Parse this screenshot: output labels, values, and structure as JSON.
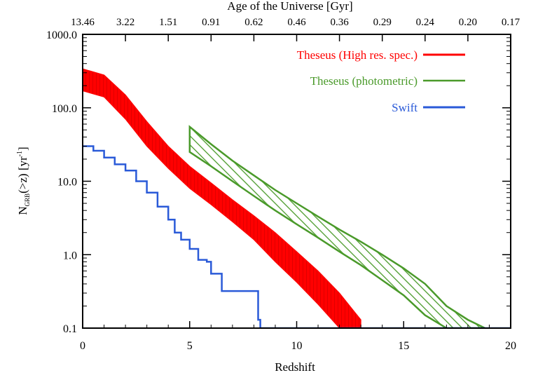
{
  "chart_data": {
    "type": "line",
    "title": "",
    "xlabel": "Redshift",
    "ylabel_main": "N",
    "ylabel_sub": "GRB",
    "ylabel_rest": "(>z)   [yr",
    "ylabel_sup": "-1",
    "ylabel_close": "]",
    "top_axis_label": "Age of the Universe [Gyr]",
    "xlim": [
      0,
      20
    ],
    "ylim": [
      0.1,
      1000
    ],
    "yscale": "log",
    "grid": false,
    "legend_position": "top-right",
    "x_ticks": [
      0,
      5,
      10,
      15,
      20
    ],
    "x_tick_labels": [
      "0",
      "5",
      "10",
      "15",
      "20"
    ],
    "y_ticks": [
      0.1,
      1,
      10,
      100,
      1000
    ],
    "y_tick_labels": [
      "0.1",
      "1.0",
      "10.0",
      "100.0",
      "1000.0"
    ],
    "top_tick_labels": [
      "13.46",
      "3.22",
      "1.51",
      "0.91",
      "0.62",
      "0.46",
      "0.36",
      "0.29",
      "0.24",
      "0.20",
      "0.17"
    ],
    "top_tick_redshifts": [
      0,
      2,
      4,
      6,
      8,
      10,
      12,
      14,
      16,
      18,
      20
    ],
    "series": [
      {
        "name": "Theseus (High res. spec.)",
        "color": "#ff0000",
        "style": "filled-band",
        "x": [
          0,
          1,
          2,
          3,
          4,
          5,
          6,
          7,
          8,
          9,
          10,
          11,
          12,
          13
        ],
        "upper": [
          340,
          280,
          150,
          65,
          30,
          16,
          9.5,
          5.6,
          3.4,
          2.0,
          1.1,
          0.6,
          0.3,
          0.13
        ],
        "lower": [
          170,
          140,
          70,
          30,
          15,
          8,
          4.8,
          2.8,
          1.6,
          0.8,
          0.42,
          0.21,
          0.1,
          0.1
        ]
      },
      {
        "name": "Theseus (photometric)",
        "color": "#4a9a2a",
        "style": "hatched-band",
        "x": [
          5,
          6,
          7,
          8,
          9,
          10,
          11,
          12,
          13,
          14,
          15,
          16,
          17,
          18,
          18.8
        ],
        "upper": [
          55,
          32,
          19,
          12,
          7.6,
          5.0,
          3.3,
          2.2,
          1.5,
          1.0,
          0.65,
          0.4,
          0.2,
          0.13,
          0.1
        ],
        "lower": [
          25,
          16,
          10,
          6.3,
          4.0,
          2.6,
          1.7,
          1.1,
          0.72,
          0.45,
          0.28,
          0.15,
          0.1,
          0.1,
          0.1
        ]
      },
      {
        "name": "Swift",
        "color": "#2a5ad8",
        "style": "step",
        "x": [
          0,
          0.5,
          1.0,
          1.5,
          2.0,
          2.5,
          3.0,
          3.5,
          4.0,
          4.3,
          4.6,
          5.0,
          5.4,
          5.8,
          6.0,
          6.5,
          7.0,
          7.5,
          8.0,
          8.2,
          8.3,
          9.0,
          10,
          12,
          14,
          16,
          18,
          20
        ],
        "y": [
          30,
          26,
          21,
          17,
          14,
          10,
          7.0,
          4.5,
          3.0,
          2.0,
          1.6,
          1.2,
          0.85,
          0.8,
          0.55,
          0.32,
          0.32,
          0.32,
          0.32,
          0.13,
          0.1,
          0.1,
          0.1,
          0.1,
          0.1,
          0.1,
          0.1,
          0.1
        ]
      }
    ]
  }
}
